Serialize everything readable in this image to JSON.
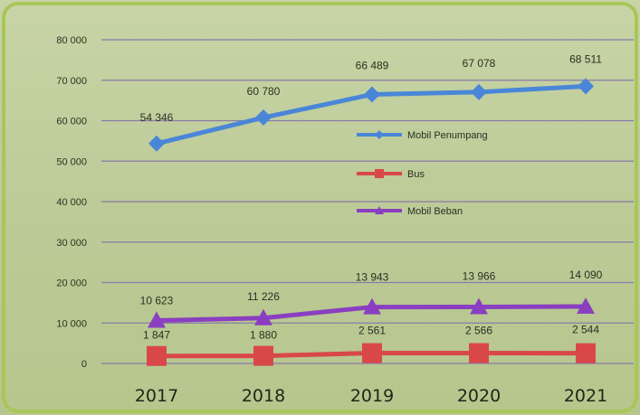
{
  "chart_data": {
    "type": "line",
    "title": "",
    "xlabel": "",
    "ylabel": "",
    "x": [
      "2017",
      "2018",
      "2019",
      "2020",
      "2021"
    ],
    "y_ticks": [
      "80 000",
      "70 000",
      "60 000",
      "50 000",
      "40 000",
      "30 000",
      "20 000",
      "10 000",
      "0"
    ],
    "ylim": [
      0,
      80000
    ],
    "grid": true,
    "legend_position": "center-right",
    "series": [
      {
        "name": "Mobil Penumpang",
        "color": "#4a86d8",
        "marker": "diamond",
        "values": [
          54346,
          60780,
          66489,
          67078,
          68511
        ],
        "labels": [
          "54 346",
          "60 780",
          "66 489",
          "67 078",
          "68 511"
        ]
      },
      {
        "name": "Bus",
        "color": "#d94848",
        "marker": "square",
        "values": [
          1847,
          1880,
          2561,
          2566,
          2544
        ],
        "labels": [
          "1 847",
          "1 880",
          "2 561",
          "2 566",
          "2 544"
        ]
      },
      {
        "name": "Mobil Beban",
        "color": "#8a3fc0",
        "marker": "triangle",
        "values": [
          10623,
          11226,
          13943,
          13966,
          14090
        ],
        "labels": [
          "10 623",
          "11 226",
          "13 943",
          "13 966",
          "14 090"
        ]
      }
    ]
  },
  "theme": {
    "background": "#cfd9b0",
    "frame_border": "#a8c65a",
    "gridline": "#8a7aa8"
  }
}
